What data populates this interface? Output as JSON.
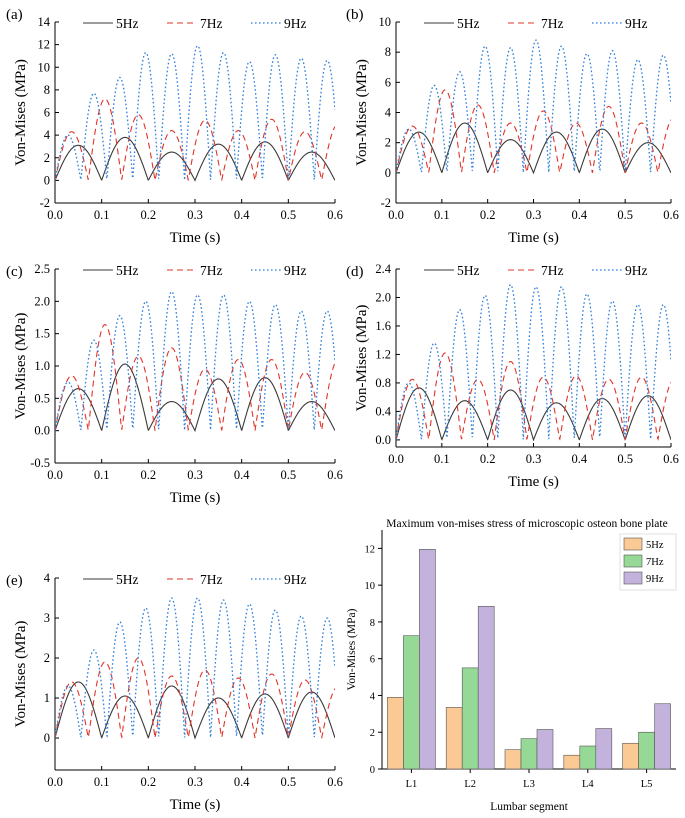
{
  "chart_data": [
    {
      "type": "line",
      "panel_label": "(a)",
      "xlabel": "Time (s)",
      "ylabel": "Von-Mises (MPa)",
      "xlim": [
        0,
        0.6
      ],
      "ylim": [
        -2,
        14
      ],
      "xticks": [
        0.0,
        0.1,
        0.2,
        0.3,
        0.4,
        0.5,
        0.6
      ],
      "xtick_labels": [
        "0.0",
        "0.1",
        "0.2",
        "0.3",
        "0.4",
        "0.5",
        "0.6"
      ],
      "yticks": [
        -2,
        0,
        2,
        4,
        6,
        8,
        10,
        12,
        14
      ],
      "ytick_labels": [
        "-2",
        "0",
        "2",
        "4",
        "6",
        "8",
        "10",
        "12",
        "14"
      ],
      "series": [
        {
          "name": "5Hz",
          "frequency": 5,
          "peaks": [
            3.1,
            3.8,
            2.5,
            3.2,
            3.4,
            2.5
          ]
        },
        {
          "name": "7Hz",
          "frequency": 7,
          "peaks": [
            4.3,
            7.2,
            5.8,
            4.4,
            5.3,
            4.4,
            5.4,
            4.3,
            5.0
          ]
        },
        {
          "name": "9Hz",
          "frequency": 9,
          "peaks": [
            4.0,
            7.7,
            9.1,
            11.3,
            11.2,
            11.9,
            11.3,
            10.5,
            11.1,
            10.8,
            10.6
          ]
        }
      ]
    },
    {
      "type": "line",
      "panel_label": "(b)",
      "xlabel": "Time (s)",
      "ylabel": "Von-Mises (MPa)",
      "xlim": [
        0,
        0.6
      ],
      "ylim": [
        -2,
        10
      ],
      "xticks": [
        0.0,
        0.1,
        0.2,
        0.3,
        0.4,
        0.5,
        0.6
      ],
      "xtick_labels": [
        "0.0",
        "0.1",
        "0.2",
        "0.3",
        "0.4",
        "0.5",
        "0.6"
      ],
      "yticks": [
        -2,
        0,
        2,
        4,
        6,
        8,
        10
      ],
      "ytick_labels": [
        "-2",
        "0",
        "2",
        "4",
        "6",
        "8",
        "10"
      ],
      "series": [
        {
          "name": "5Hz",
          "frequency": 5,
          "peaks": [
            2.7,
            3.3,
            2.2,
            2.7,
            2.9,
            2.0
          ]
        },
        {
          "name": "7Hz",
          "frequency": 7,
          "peaks": [
            3.1,
            5.5,
            4.5,
            3.3,
            4.1,
            3.3,
            4.4,
            3.3,
            3.7
          ]
        },
        {
          "name": "9Hz",
          "frequency": 9,
          "peaks": [
            2.9,
            5.8,
            6.7,
            8.4,
            8.3,
            8.8,
            8.4,
            7.9,
            8.1,
            7.5,
            7.8
          ]
        }
      ]
    },
    {
      "type": "line",
      "panel_label": "(c)",
      "xlabel": "Time (s)",
      "ylabel": "Von-Mises (MPa)",
      "xlim": [
        0,
        0.6
      ],
      "ylim": [
        -0.5,
        2.5
      ],
      "xticks": [
        0.0,
        0.1,
        0.2,
        0.3,
        0.4,
        0.5,
        0.6
      ],
      "xtick_labels": [
        "0.0",
        "0.1",
        "0.2",
        "0.3",
        "0.4",
        "0.5",
        "0.6"
      ],
      "yticks": [
        -0.5,
        0.0,
        0.5,
        1.0,
        1.5,
        2.0,
        2.5
      ],
      "ytick_labels": [
        "-0.5",
        "0.0",
        "0.5",
        "1.0",
        "1.5",
        "2.0",
        "2.5"
      ],
      "series": [
        {
          "name": "5Hz",
          "frequency": 5,
          "peaks": [
            0.65,
            1.03,
            0.45,
            0.8,
            0.82,
            0.45
          ]
        },
        {
          "name": "7Hz",
          "frequency": 7,
          "peaks": [
            0.85,
            1.64,
            1.15,
            1.28,
            0.95,
            1.1,
            1.1,
            0.9,
            1.1
          ]
        },
        {
          "name": "9Hz",
          "frequency": 9,
          "peaks": [
            0.75,
            1.4,
            1.78,
            2.0,
            2.15,
            2.1,
            2.1,
            2.0,
            1.95,
            1.85,
            1.85
          ]
        }
      ]
    },
    {
      "type": "line",
      "panel_label": "(d)",
      "xlabel": "Time (s)",
      "ylabel": "Von-Mises (MPa)",
      "xlim": [
        0,
        0.6
      ],
      "ylim": [
        -0.1,
        2.4
      ],
      "xticks": [
        0.0,
        0.1,
        0.2,
        0.3,
        0.4,
        0.5,
        0.6
      ],
      "xtick_labels": [
        "0.0",
        "0.1",
        "0.2",
        "0.3",
        "0.4",
        "0.5",
        "0.6"
      ],
      "yticks": [
        0.0,
        0.4,
        0.8,
        1.2,
        1.6,
        2.0,
        2.4
      ],
      "ytick_labels": [
        "0.0",
        "0.4",
        "0.8",
        "1.2",
        "1.6",
        "2.0",
        "2.4"
      ],
      "series": [
        {
          "name": "5Hz",
          "frequency": 5,
          "peaks": [
            0.73,
            0.55,
            0.7,
            0.52,
            0.58,
            0.62
          ]
        },
        {
          "name": "7Hz",
          "frequency": 7,
          "peaks": [
            0.85,
            1.22,
            0.85,
            1.1,
            0.88,
            0.9,
            0.85,
            0.88,
            0.85
          ]
        },
        {
          "name": "9Hz",
          "frequency": 9,
          "peaks": [
            0.8,
            1.36,
            1.83,
            2.03,
            2.18,
            2.15,
            2.15,
            2.05,
            1.95,
            1.9,
            1.9
          ]
        }
      ]
    },
    {
      "type": "line",
      "panel_label": "(e)",
      "xlabel": "Time (s)",
      "ylabel": "Von-Mises (MPa)",
      "xlim": [
        0,
        0.6
      ],
      "ylim": [
        -0.8,
        4
      ],
      "xticks": [
        0.0,
        0.1,
        0.2,
        0.3,
        0.4,
        0.5,
        0.6
      ],
      "xtick_labels": [
        "0.0",
        "0.1",
        "0.2",
        "0.3",
        "0.4",
        "0.5",
        "0.6"
      ],
      "yticks": [
        0,
        1,
        2,
        3,
        4
      ],
      "ytick_labels": [
        "0",
        "1",
        "2",
        "3",
        "4"
      ],
      "series": [
        {
          "name": "5Hz",
          "frequency": 5,
          "peaks": [
            1.4,
            1.05,
            1.3,
            1.0,
            1.1,
            1.15
          ]
        },
        {
          "name": "7Hz",
          "frequency": 7,
          "peaks": [
            1.4,
            1.9,
            2.0,
            1.55,
            1.7,
            1.5,
            1.6,
            1.45,
            1.3
          ]
        },
        {
          "name": "9Hz",
          "frequency": 9,
          "peaks": [
            1.3,
            2.2,
            2.9,
            3.25,
            3.5,
            3.5,
            3.45,
            3.35,
            3.2,
            3.05,
            3.0
          ]
        }
      ]
    },
    {
      "type": "bar",
      "title": "Maximum von-mises stress of microscopic osteon bone plate",
      "xlabel": "Lumbar segment",
      "ylabel": "Von-Mises (MPa)",
      "categories": [
        "L1",
        "L2",
        "L3",
        "L4",
        "L5"
      ],
      "ylim": [
        0,
        13
      ],
      "yticks": [
        0,
        2,
        4,
        6,
        8,
        10,
        12
      ],
      "ytick_labels": [
        "0",
        "2",
        "4",
        "6",
        "8",
        "10",
        "12"
      ],
      "legend_position": "top-right",
      "series": [
        {
          "name": "5Hz",
          "values": [
            3.9,
            3.35,
            1.05,
            0.75,
            1.4
          ]
        },
        {
          "name": "7Hz",
          "values": [
            7.25,
            5.5,
            1.65,
            1.25,
            2.0
          ]
        },
        {
          "name": "9Hz",
          "values": [
            11.95,
            8.85,
            2.15,
            2.2,
            3.55
          ]
        }
      ]
    }
  ],
  "colors": {
    "5Hz_line": "#3a3a3a",
    "7Hz_line": "#e0342a",
    "9Hz_line": "#2f7fd8",
    "5Hz_bar": "#fbc994",
    "7Hz_bar": "#96d895",
    "9Hz_bar": "#c3b3dc"
  }
}
